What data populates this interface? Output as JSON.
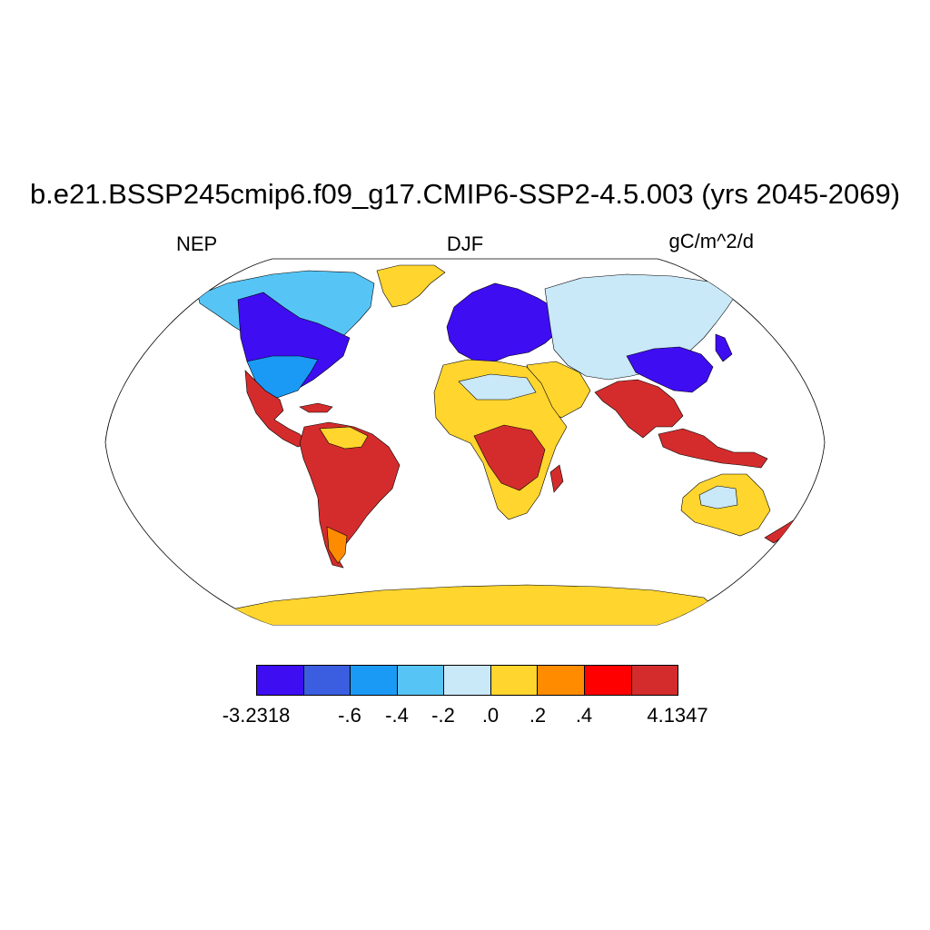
{
  "title": "b.e21.BSSP245cmip6.f09_g17.CMIP6-SSP2-4.5.003 (yrs 2045-2069)",
  "left_label": "NEP",
  "center_label": "DJF",
  "right_label": "gC/m^2/d",
  "colorbar": {
    "colors": [
      "#3f0df2",
      "#3b5de0",
      "#1a9af5",
      "#56c5f5",
      "#c9e8f8",
      "#ffd52e",
      "#ff8c00",
      "#ff0000",
      "#d42c2c"
    ],
    "labels": [
      "-3.2318",
      "-.6",
      "-.4",
      "-.2",
      ".0",
      ".2",
      ".4",
      "4.1347"
    ]
  },
  "legend_colors": {
    "strong_negative": "#3f0df2",
    "weak_negative": "#c9e8f8",
    "weak_positive": "#ffd52e",
    "strong_positive": "#d42c2c"
  }
}
